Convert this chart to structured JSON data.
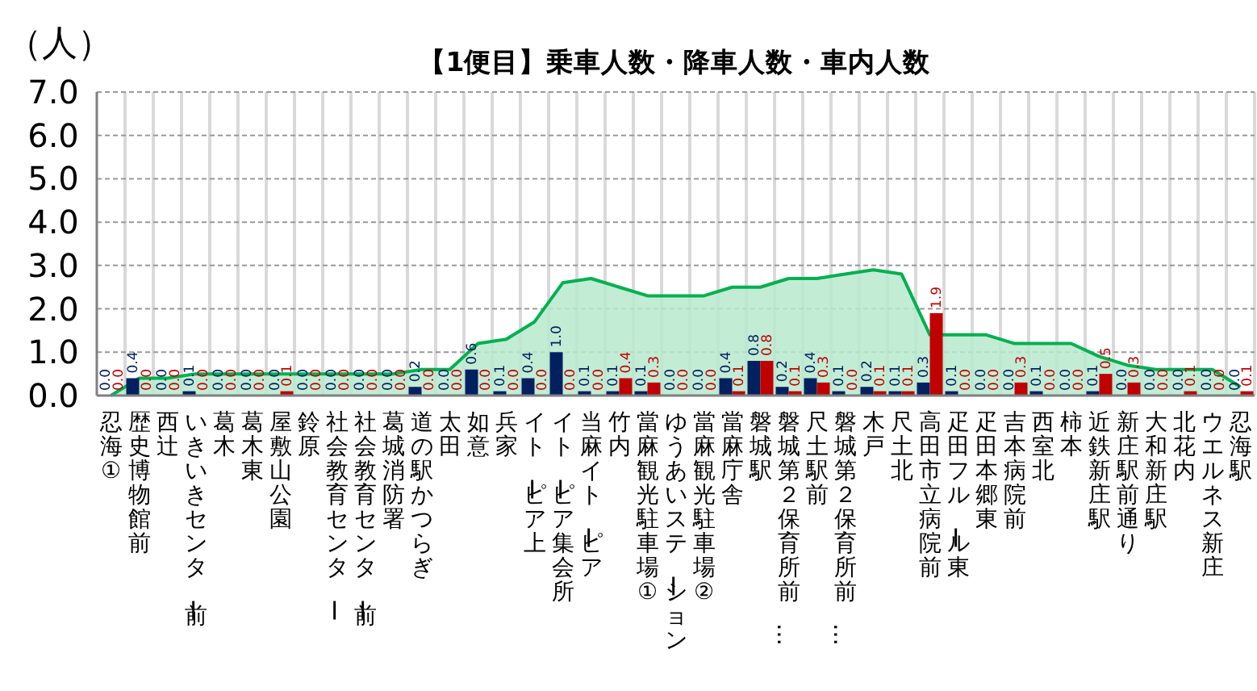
{
  "chart_data": {
    "type": "bar",
    "title": "【1便目】乗車人数・降車人数・車内人数",
    "ylabel": "（人）",
    "categories": [
      "忍海①",
      "歴史博物館前",
      "西辻",
      "いきいきセンター前",
      "葛木",
      "葛木東",
      "屋敷山公園",
      "鈴原",
      "社会教育センター",
      "社会教育センター前",
      "葛城消防署",
      "道の駅かつらぎ",
      "太田",
      "如意",
      "兵家",
      "イトーピア上",
      "イトーピア集会所",
      "当麻イトーピア",
      "竹内",
      "當麻観光駐車場①",
      "ゆうあいステーション",
      "當麻観光駐車場②",
      "當麻庁舎",
      "磐城駅",
      "磐城第２保育所前…",
      "尺土駅前",
      "磐城第２保育所前…",
      "木戸",
      "尺土北",
      "高田市立病院前",
      "疋田フルール東",
      "疋田本郷東",
      "吉本病院前",
      "西室北",
      "柿本",
      "近鉄新庄駅",
      "新庄駅前通り",
      "大和新庄駅",
      "北花内",
      "ウエルネス新庄",
      "忍海駅"
    ],
    "series": [
      {
        "color": "#002060",
        "values": [
          0,
          0.4,
          0,
          0.1,
          0,
          0,
          0,
          0,
          0,
          0,
          0,
          0.2,
          0,
          0.6,
          0.1,
          0.4,
          1.0,
          0.1,
          0.1,
          0.1,
          0,
          0,
          0.4,
          0.8,
          0.2,
          0.4,
          0.1,
          0.2,
          0.1,
          0.3,
          0.1,
          0,
          0,
          0.1,
          0,
          0.1,
          0,
          0,
          0,
          0,
          0
        ],
        "value_labels": [
          "0.0",
          "0.4",
          "0.0",
          "0.1",
          "0.0",
          "0.0",
          "0.0",
          "0.0",
          "0.0",
          "0.0",
          "0.0",
          "0.2",
          "0.0",
          "0.6",
          "0.1",
          "0.4",
          "1.0",
          "0.1",
          "0.1",
          "0.1",
          "0.0",
          "0.0",
          "0.4",
          "0.8",
          "0.2",
          "0.4",
          "0.1",
          "0.2",
          "0.1",
          "0.3",
          "0.1",
          "0.0",
          "0.0",
          "0.1",
          "0.0",
          "0.1",
          "0.0",
          "0.0",
          "0.0",
          "0.0",
          "0.0"
        ]
      },
      {
        "color": "#c00000",
        "values": [
          0,
          0,
          0,
          0,
          0,
          0,
          0.1,
          0,
          0,
          0,
          0,
          0,
          0,
          0,
          0,
          0,
          0,
          0,
          0.4,
          0.3,
          0,
          0,
          0.1,
          0.8,
          0.1,
          0.3,
          0,
          0.1,
          0.1,
          1.9,
          0,
          0,
          0.3,
          0,
          0,
          0.5,
          0.3,
          0,
          0.1,
          0,
          0.1
        ],
        "value_labels": [
          "0.0",
          "0.0",
          "0.0",
          "0.0",
          "0.0",
          "0.0",
          "0.1",
          "0.0",
          "0.0",
          "0.0",
          "0.0",
          "0.0",
          "0.0",
          "0.0",
          "0.0",
          "0.0",
          "0.0",
          "0.0",
          "0.4",
          "0.3",
          "0.0",
          "0.0",
          "0.1",
          "0.8",
          "0.1",
          "0.3",
          "0.0",
          "0.1",
          "0.1",
          "1.9",
          "0.0",
          "0.0",
          "0.3",
          "0.0",
          "0.0",
          "0.5",
          "0.3",
          "0.0",
          "0.1",
          "0.0",
          "0.1"
        ]
      },
      {
        "type": "area",
        "color": "#00b050",
        "values": [
          0,
          0.4,
          0.4,
          0.5,
          0.5,
          0.5,
          0.5,
          0.5,
          0.5,
          0.5,
          0.5,
          0.6,
          0.6,
          1.2,
          1.3,
          1.7,
          2.6,
          2.7,
          2.5,
          2.3,
          2.3,
          2.3,
          2.5,
          2.5,
          2.7,
          2.7,
          2.8,
          2.9,
          2.8,
          1.4,
          1.4,
          1.4,
          1.2,
          1.2,
          1.2,
          0.9,
          0.7,
          0.6,
          0.6,
          0.6,
          0.2
        ]
      }
    ],
    "ylim": [
      0,
      7
    ],
    "yticks": [
      {
        "value": 0,
        "label": "0.0"
      },
      {
        "value": 1,
        "label": "1.0"
      },
      {
        "value": 2,
        "label": "2.0"
      },
      {
        "value": 3,
        "label": "3.0"
      },
      {
        "value": 4,
        "label": "4.0"
      },
      {
        "value": 5,
        "label": "5.0"
      },
      {
        "value": 6,
        "label": "6.0"
      },
      {
        "value": 7,
        "label": "7.0"
      }
    ],
    "grid": true
  }
}
